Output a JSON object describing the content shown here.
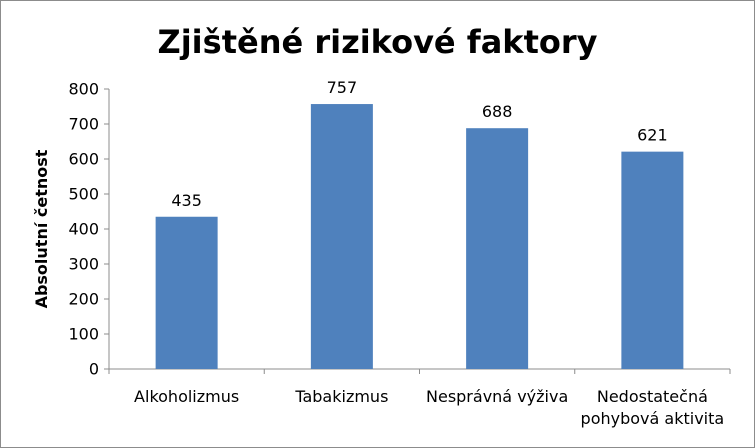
{
  "chart_data": {
    "type": "bar",
    "title": "Zjištěné rizikové faktory",
    "xlabel": "",
    "ylabel": "Absolutní četnost",
    "categories": [
      [
        "Alkoholizmus"
      ],
      [
        "Tabakizmus"
      ],
      [
        "Nesprávná výživa"
      ],
      [
        "Nedostatečná",
        "pohybová aktivita"
      ]
    ],
    "values": [
      435,
      757,
      688,
      621
    ],
    "data_labels": [
      "435",
      "757",
      "688",
      "621"
    ],
    "ylim": [
      0,
      800
    ],
    "yticks": [
      0,
      100,
      200,
      300,
      400,
      500,
      600,
      700,
      800
    ],
    "grid": false,
    "legend": "none",
    "bar_color": "#4f81bd"
  }
}
